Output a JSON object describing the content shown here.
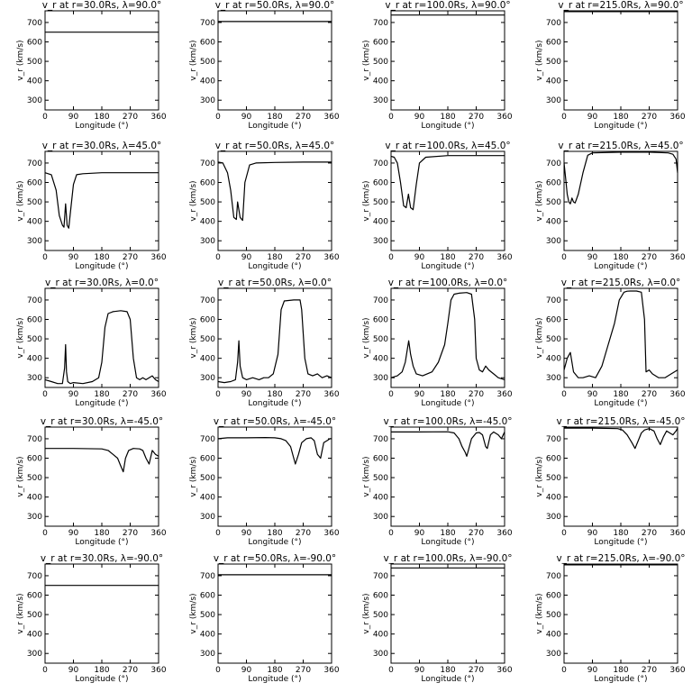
{
  "chart_data": [
    {
      "type": "line",
      "title": "v_r at r=30.0Rs, λ=90.0°",
      "xlabel": "Longitude (°)",
      "ylabel": "v_r (km/s)",
      "xlim": [
        0,
        360
      ],
      "ylim": [
        250,
        760
      ],
      "xticks": [
        0,
        90,
        180,
        270,
        360
      ],
      "yticks": [
        300,
        400,
        500,
        600,
        700
      ],
      "x": [
        0,
        360
      ],
      "y": [
        650,
        650
      ]
    },
    {
      "type": "line",
      "title": "v_r at r=50.0Rs, λ=90.0°",
      "xlabel": "Longitude (°)",
      "ylabel": "v_r (km/s)",
      "xlim": [
        0,
        360
      ],
      "ylim": [
        250,
        760
      ],
      "xticks": [
        0,
        90,
        180,
        270,
        360
      ],
      "yticks": [
        300,
        400,
        500,
        600,
        700
      ],
      "x": [
        0,
        360
      ],
      "y": [
        705,
        705
      ]
    },
    {
      "type": "line",
      "title": "v_r at r=100.0Rs, λ=90.0°",
      "xlabel": "Longitude (°)",
      "ylabel": "v_r (km/s)",
      "xlim": [
        0,
        360
      ],
      "ylim": [
        250,
        760
      ],
      "xticks": [
        0,
        90,
        180,
        270,
        360
      ],
      "yticks": [
        300,
        400,
        500,
        600,
        700
      ],
      "x": [
        0,
        360
      ],
      "y": [
        738,
        738
      ]
    },
    {
      "type": "line",
      "title": "v_r at r=215.0Rs, λ=90.0°",
      "xlabel": "Longitude (°)",
      "ylabel": "v_r (km/s)",
      "xlim": [
        0,
        360
      ],
      "ylim": [
        250,
        760
      ],
      "xticks": [
        0,
        90,
        180,
        270,
        360
      ],
      "yticks": [
        300,
        400,
        500,
        600,
        700
      ],
      "x": [
        0,
        360
      ],
      "y": [
        756,
        756
      ]
    },
    {
      "type": "line",
      "title": "v_r at r=30.0Rs, λ=45.0°",
      "xlabel": "Longitude (°)",
      "ylabel": "v_r (km/s)",
      "xlim": [
        0,
        360
      ],
      "ylim": [
        250,
        760
      ],
      "xticks": [
        0,
        90,
        180,
        270,
        360
      ],
      "yticks": [
        300,
        400,
        500,
        600,
        700
      ],
      "x": [
        0,
        20,
        35,
        45,
        55,
        60,
        65,
        70,
        75,
        80,
        90,
        100,
        120,
        180,
        270,
        360
      ],
      "y": [
        650,
        640,
        560,
        430,
        380,
        370,
        490,
        380,
        365,
        440,
        590,
        640,
        645,
        650,
        650,
        650
      ]
    },
    {
      "type": "line",
      "title": "v_r at r=50.0Rs, λ=45.0°",
      "xlabel": "Longitude (°)",
      "ylabel": "v_r (km/s)",
      "xlim": [
        0,
        360
      ],
      "ylim": [
        250,
        760
      ],
      "xticks": [
        0,
        90,
        180,
        270,
        360
      ],
      "yticks": [
        300,
        400,
        500,
        600,
        700
      ],
      "x": [
        0,
        15,
        30,
        40,
        50,
        58,
        62,
        70,
        78,
        85,
        100,
        120,
        180,
        270,
        360
      ],
      "y": [
        705,
        700,
        650,
        560,
        420,
        410,
        500,
        420,
        405,
        600,
        690,
        700,
        703,
        705,
        705
      ]
    },
    {
      "type": "line",
      "title": "v_r at r=100.0Rs, λ=45.0°",
      "xlabel": "Longitude (°)",
      "ylabel": "v_r (km/s)",
      "xlim": [
        0,
        360
      ],
      "ylim": [
        250,
        760
      ],
      "xticks": [
        0,
        90,
        180,
        270,
        360
      ],
      "yticks": [
        300,
        400,
        500,
        600,
        700
      ],
      "x": [
        0,
        10,
        20,
        30,
        40,
        48,
        55,
        62,
        70,
        80,
        90,
        110,
        180,
        270,
        360
      ],
      "y": [
        735,
        730,
        700,
        600,
        480,
        470,
        540,
        470,
        460,
        590,
        700,
        730,
        738,
        738,
        738
      ]
    },
    {
      "type": "line",
      "title": "v_r at r=215.0Rs, λ=45.0°",
      "xlabel": "Longitude (°)",
      "ylabel": "v_r (km/s)",
      "xlim": [
        0,
        360
      ],
      "ylim": [
        250,
        760
      ],
      "xticks": [
        0,
        90,
        180,
        270,
        360
      ],
      "yticks": [
        300,
        400,
        500,
        600,
        700
      ],
      "x": [
        0,
        5,
        10,
        15,
        20,
        25,
        30,
        35,
        45,
        60,
        75,
        90,
        180,
        270,
        330,
        345,
        355,
        360
      ],
      "y": [
        700,
        620,
        540,
        500,
        490,
        520,
        500,
        495,
        540,
        650,
        740,
        752,
        756,
        756,
        752,
        745,
        720,
        650
      ]
    },
    {
      "type": "line",
      "title": "v_r at r=30.0Rs, λ=0.0°",
      "xlabel": "Longitude (°)",
      "ylabel": "v_r (km/s)",
      "xlim": [
        0,
        360
      ],
      "ylim": [
        250,
        760
      ],
      "xticks": [
        0,
        90,
        180,
        270,
        360
      ],
      "yticks": [
        300,
        400,
        500,
        600,
        700
      ],
      "x": [
        0,
        20,
        40,
        55,
        62,
        65,
        68,
        72,
        80,
        90,
        120,
        150,
        170,
        180,
        190,
        200,
        215,
        240,
        260,
        270,
        280,
        290,
        300,
        310,
        320,
        330,
        340,
        350,
        360
      ],
      "y": [
        290,
        280,
        270,
        270,
        350,
        470,
        330,
        280,
        270,
        275,
        270,
        280,
        300,
        380,
        560,
        630,
        640,
        645,
        640,
        600,
        400,
        300,
        290,
        300,
        290,
        300,
        310,
        290,
        280
      ]
    },
    {
      "type": "line",
      "title": "v_r at r=50.0Rs, λ=0.0°",
      "xlabel": "Longitude (°)",
      "ylabel": "v_r (km/s)",
      "xlim": [
        0,
        360
      ],
      "ylim": [
        250,
        760
      ],
      "xticks": [
        0,
        90,
        180,
        270,
        360
      ],
      "yticks": [
        300,
        400,
        500,
        600,
        700
      ],
      "x": [
        0,
        20,
        40,
        55,
        62,
        66,
        70,
        78,
        90,
        110,
        130,
        145,
        160,
        175,
        190,
        200,
        210,
        240,
        260,
        265,
        275,
        285,
        300,
        315,
        330,
        345,
        360
      ],
      "y": [
        280,
        275,
        280,
        290,
        380,
        490,
        360,
        300,
        290,
        300,
        290,
        300,
        300,
        320,
        420,
        650,
        695,
        700,
        700,
        650,
        400,
        320,
        310,
        320,
        300,
        310,
        300
      ]
    },
    {
      "type": "line",
      "title": "v_r at r=100.0Rs, λ=0.0°",
      "xlabel": "Longitude (°)",
      "ylabel": "v_r (km/s)",
      "xlim": [
        0,
        360
      ],
      "ylim": [
        250,
        760
      ],
      "xticks": [
        0,
        90,
        180,
        270,
        360
      ],
      "yticks": [
        300,
        400,
        500,
        600,
        700
      ],
      "x": [
        0,
        20,
        35,
        45,
        52,
        56,
        62,
        70,
        80,
        100,
        130,
        150,
        170,
        180,
        190,
        200,
        215,
        240,
        255,
        265,
        270,
        280,
        290,
        300,
        310,
        325,
        340,
        360
      ],
      "y": [
        300,
        310,
        330,
        380,
        450,
        490,
        420,
        360,
        320,
        310,
        330,
        380,
        470,
        580,
        700,
        730,
        735,
        738,
        730,
        600,
        400,
        340,
        330,
        360,
        340,
        320,
        300,
        290
      ]
    },
    {
      "type": "line",
      "title": "v_r at r=215.0Rs, λ=0.0°",
      "xlabel": "Longitude (°)",
      "ylabel": "v_r (km/s)",
      "xlim": [
        0,
        360
      ],
      "ylim": [
        250,
        760
      ],
      "xticks": [
        0,
        90,
        180,
        270,
        360
      ],
      "yticks": [
        300,
        400,
        500,
        600,
        700
      ],
      "x": [
        0,
        10,
        20,
        30,
        45,
        60,
        80,
        100,
        120,
        140,
        160,
        175,
        190,
        200,
        210,
        230,
        245,
        255,
        260,
        270,
        280,
        300,
        320,
        340,
        360
      ],
      "y": [
        340,
        400,
        430,
        330,
        300,
        300,
        310,
        300,
        360,
        470,
        580,
        700,
        740,
        745,
        746,
        746,
        740,
        600,
        330,
        340,
        320,
        300,
        300,
        320,
        340
      ]
    },
    {
      "type": "line",
      "title": "v_r at r=30.0Rs, λ=-45.0°",
      "xlabel": "Longitude (°)",
      "ylabel": "v_r (km/s)",
      "xlim": [
        0,
        360
      ],
      "ylim": [
        250,
        760
      ],
      "xticks": [
        0,
        90,
        180,
        270,
        360
      ],
      "yticks": [
        300,
        400,
        500,
        600,
        700
      ],
      "x": [
        0,
        90,
        180,
        200,
        215,
        230,
        240,
        248,
        255,
        265,
        280,
        300,
        310,
        320,
        330,
        340,
        350,
        360
      ],
      "y": [
        650,
        650,
        648,
        640,
        620,
        600,
        560,
        530,
        600,
        640,
        650,
        648,
        640,
        600,
        570,
        640,
        620,
        610
      ]
    },
    {
      "type": "line",
      "title": "v_r at r=50.0Rs, λ=-45.0°",
      "xlabel": "Longitude (°)",
      "ylabel": "v_r (km/s)",
      "xlim": [
        0,
        360
      ],
      "ylim": [
        250,
        760
      ],
      "xticks": [
        0,
        90,
        180,
        270,
        360
      ],
      "yticks": [
        300,
        400,
        500,
        600,
        700
      ],
      "x": [
        0,
        30,
        90,
        150,
        180,
        200,
        215,
        230,
        240,
        245,
        255,
        265,
        280,
        295,
        305,
        315,
        325,
        335,
        345,
        355,
        360
      ],
      "y": [
        700,
        705,
        705,
        706,
        705,
        700,
        690,
        660,
        600,
        570,
        620,
        680,
        700,
        705,
        690,
        620,
        600,
        680,
        690,
        700,
        700
      ]
    },
    {
      "type": "line",
      "title": "v_r at r=100.0Rs, λ=-45.0°",
      "xlabel": "Longitude (°)",
      "ylabel": "v_r (km/s)",
      "xlim": [
        0,
        360
      ],
      "ylim": [
        250,
        760
      ],
      "xticks": [
        0,
        90,
        180,
        270,
        360
      ],
      "yticks": [
        300,
        400,
        500,
        600,
        700
      ],
      "x": [
        0,
        90,
        180,
        200,
        215,
        225,
        235,
        240,
        245,
        255,
        270,
        280,
        290,
        300,
        305,
        315,
        325,
        340,
        350,
        360
      ],
      "y": [
        735,
        735,
        736,
        730,
        700,
        660,
        630,
        610,
        640,
        700,
        730,
        732,
        720,
        660,
        650,
        720,
        735,
        720,
        700,
        735
      ]
    },
    {
      "type": "line",
      "title": "v_r at r=215.0Rs, λ=-45.0°",
      "xlabel": "Longitude (°)",
      "ylabel": "v_r (km/s)",
      "xlim": [
        0,
        360
      ],
      "ylim": [
        250,
        760
      ],
      "xticks": [
        0,
        90,
        180,
        270,
        360
      ],
      "yticks": [
        300,
        400,
        500,
        600,
        700
      ],
      "x": [
        0,
        90,
        170,
        185,
        200,
        215,
        225,
        235,
        245,
        255,
        270,
        285,
        295,
        305,
        315,
        325,
        335,
        345,
        355,
        360
      ],
      "y": [
        755,
        755,
        752,
        745,
        720,
        680,
        650,
        690,
        730,
        745,
        752,
        740,
        700,
        670,
        710,
        740,
        730,
        720,
        740,
        755
      ]
    },
    {
      "type": "line",
      "title": "v_r at r=30.0Rs, λ=-90.0°",
      "xlabel": "Longitude (°)",
      "ylabel": "v_r (km/s)",
      "xlim": [
        0,
        360
      ],
      "ylim": [
        250,
        760
      ],
      "xticks": [
        0,
        90,
        180,
        270,
        360
      ],
      "yticks": [
        300,
        400,
        500,
        600,
        700
      ],
      "x": [
        0,
        360
      ],
      "y": [
        650,
        650
      ]
    },
    {
      "type": "line",
      "title": "v_r at r=50.0Rs, λ=-90.0°",
      "xlabel": "Longitude (°)",
      "ylabel": "v_r (km/s)",
      "xlim": [
        0,
        360
      ],
      "ylim": [
        250,
        760
      ],
      "xticks": [
        0,
        90,
        180,
        270,
        360
      ],
      "yticks": [
        300,
        400,
        500,
        600,
        700
      ],
      "x": [
        0,
        360
      ],
      "y": [
        705,
        705
      ]
    },
    {
      "type": "line",
      "title": "v_r at r=100.0Rs, λ=-90.0°",
      "xlabel": "Longitude (°)",
      "ylabel": "v_r (km/s)",
      "xlim": [
        0,
        360
      ],
      "ylim": [
        250,
        760
      ],
      "xticks": [
        0,
        90,
        180,
        270,
        360
      ],
      "yticks": [
        300,
        400,
        500,
        600,
        700
      ],
      "x": [
        0,
        360
      ],
      "y": [
        740,
        740
      ]
    },
    {
      "type": "line",
      "title": "v_r at r=215.0Rs, λ=-90.0°",
      "xlabel": "Longitude (°)",
      "ylabel": "v_r (km/s)",
      "xlim": [
        0,
        360
      ],
      "ylim": [
        250,
        760
      ],
      "xticks": [
        0,
        90,
        180,
        270,
        360
      ],
      "yticks": [
        300,
        400,
        500,
        600,
        700
      ],
      "x": [
        0,
        360
      ],
      "y": [
        756,
        756
      ]
    }
  ]
}
